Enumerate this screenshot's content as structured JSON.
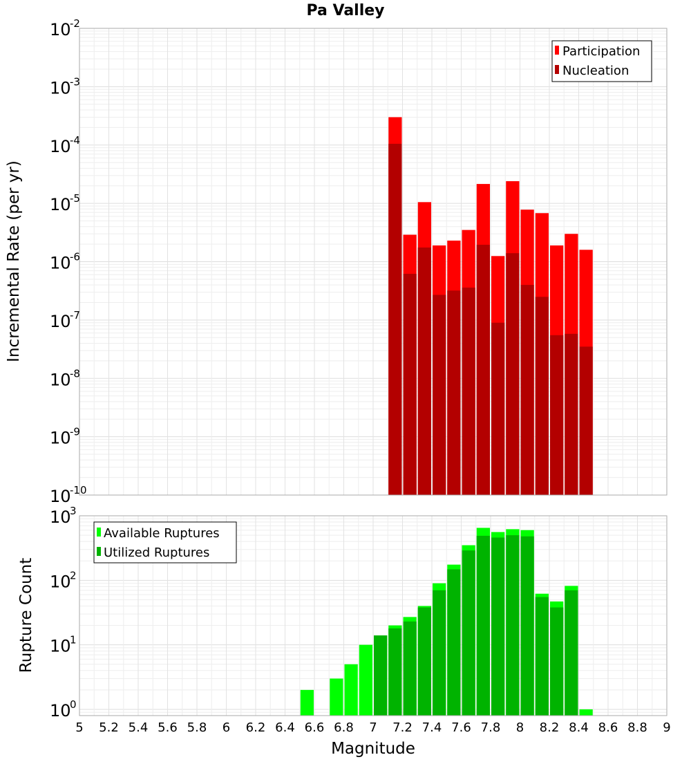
{
  "chart_data": [
    {
      "type": "bar",
      "title": "Pa Valley",
      "xlabel": "",
      "ylabel": "Incremental Rate (per yr)",
      "yscale": "log",
      "ylim": [
        1e-10,
        0.01
      ],
      "xlim": [
        5,
        9
      ],
      "y_tick_labels": [
        {
          "base": "10",
          "exp": "-2"
        },
        {
          "base": "10",
          "exp": "-3"
        },
        {
          "base": "10",
          "exp": "-4"
        },
        {
          "base": "10",
          "exp": "-5"
        },
        {
          "base": "10",
          "exp": "-6"
        },
        {
          "base": "10",
          "exp": "-7"
        },
        {
          "base": "10",
          "exp": "-8"
        },
        {
          "base": "10",
          "exp": "-9"
        },
        {
          "base": "10",
          "exp": "-10"
        }
      ],
      "legend_position": "top-right",
      "grid": true,
      "x": [
        7.15,
        7.25,
        7.35,
        7.45,
        7.55,
        7.65,
        7.75,
        7.85,
        7.95,
        8.05,
        8.15,
        8.25,
        8.35,
        8.45
      ],
      "series": [
        {
          "name": "Participation",
          "color": "#ff0000",
          "values": [
            0.0003,
            2.9e-06,
            1.05e-05,
            1.9e-06,
            2.3e-06,
            3.5e-06,
            2.15e-05,
            1.25e-06,
            2.4e-05,
            7.8e-06,
            6.8e-06,
            1.9e-06,
            3e-06,
            1.6e-06
          ]
        },
        {
          "name": "Nucleation",
          "color": "#b30000",
          "values": [
            0.000105,
            6.2e-07,
            1.75e-06,
            2.7e-07,
            3.2e-07,
            3.6e-07,
            1.95e-06,
            9e-08,
            1.4e-06,
            4e-07,
            2.5e-07,
            5.5e-08,
            5.8e-08,
            3.5e-08
          ]
        }
      ]
    },
    {
      "type": "bar",
      "title": "",
      "xlabel": "Magnitude",
      "ylabel": "Rupture Count",
      "yscale": "log",
      "ylim": [
        0.8,
        1000
      ],
      "xlim": [
        5,
        9
      ],
      "x_tick_labels": [
        "5",
        "5.2",
        "5.4",
        "5.6",
        "5.8",
        "6",
        "6.2",
        "6.4",
        "6.6",
        "6.8",
        "7",
        "7.2",
        "7.4",
        "7.6",
        "7.8",
        "8",
        "8.2",
        "8.4",
        "8.6",
        "8.8",
        "9"
      ],
      "y_tick_labels": [
        {
          "base": "10",
          "exp": "3"
        },
        {
          "base": "10",
          "exp": "2"
        },
        {
          "base": "10",
          "exp": "1"
        },
        {
          "base": "10",
          "exp": "0"
        }
      ],
      "legend_position": "top-left",
      "grid": true,
      "x": [
        6.55,
        6.75,
        6.85,
        6.95,
        7.05,
        7.15,
        7.25,
        7.35,
        7.45,
        7.55,
        7.65,
        7.75,
        7.85,
        7.95,
        8.05,
        8.15,
        8.25,
        8.35,
        8.45
      ],
      "series": [
        {
          "name": "Available Ruptures",
          "color": "#00ff00",
          "values": [
            2,
            3,
            5,
            10,
            14,
            20,
            27,
            40,
            90,
            175,
            350,
            650,
            560,
            620,
            600,
            62,
            47,
            82,
            1
          ]
        },
        {
          "name": "Utilized Ruptures",
          "color": "#00b300",
          "values": [
            0,
            0,
            0,
            0,
            14,
            18,
            23,
            38,
            70,
            148,
            290,
            490,
            460,
            500,
            480,
            55,
            38,
            70,
            0
          ]
        }
      ]
    }
  ]
}
